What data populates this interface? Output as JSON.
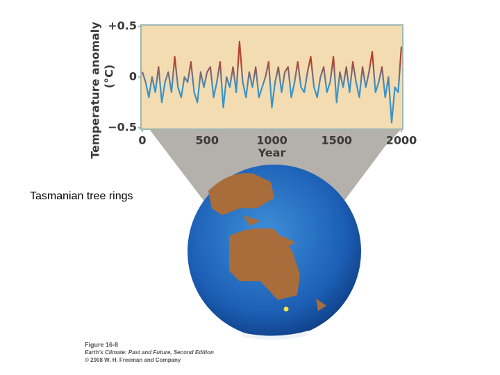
{
  "chart_data": {
    "type": "line",
    "ylabel_lines": [
      "Temperature anomaly",
      "(°C)"
    ],
    "xlabel": "Year",
    "x": [
      0,
      25,
      50,
      75,
      100,
      125,
      150,
      175,
      200,
      225,
      250,
      275,
      300,
      325,
      350,
      375,
      400,
      425,
      450,
      475,
      500,
      525,
      550,
      575,
      600,
      625,
      650,
      675,
      700,
      725,
      750,
      775,
      800,
      825,
      850,
      875,
      900,
      925,
      950,
      975,
      1000,
      1025,
      1050,
      1075,
      1100,
      1125,
      1150,
      1175,
      1200,
      1225,
      1250,
      1275,
      1300,
      1325,
      1350,
      1375,
      1400,
      1425,
      1450,
      1475,
      1500,
      1525,
      1550,
      1575,
      1600,
      1625,
      1650,
      1675,
      1700,
      1725,
      1750,
      1775,
      1800,
      1825,
      1850,
      1875,
      1900,
      1925,
      1950,
      1975,
      2000
    ],
    "series": [
      {
        "color_positive": "#b5432e",
        "color_negative": "#3b93c4",
        "values": [
          0.05,
          -0.05,
          -0.2,
          0.0,
          -0.15,
          0.1,
          -0.25,
          -0.05,
          0.05,
          -0.15,
          0.2,
          -0.1,
          -0.2,
          0.0,
          -0.05,
          0.15,
          -0.15,
          -0.25,
          0.05,
          -0.1,
          0.05,
          0.1,
          -0.2,
          -0.05,
          0.15,
          -0.3,
          0.0,
          -0.1,
          0.1,
          -0.15,
          0.35,
          -0.05,
          -0.2,
          0.05,
          -0.1,
          0.1,
          -0.2,
          -0.1,
          0.0,
          0.15,
          -0.3,
          -0.05,
          0.1,
          -0.15,
          0.05,
          0.1,
          -0.2,
          -0.05,
          0.15,
          -0.1,
          -0.15,
          0.05,
          0.2,
          -0.1,
          -0.2,
          0.0,
          0.1,
          -0.15,
          -0.05,
          0.2,
          -0.25,
          0.05,
          -0.1,
          0.1,
          -0.15,
          0.15,
          -0.05,
          -0.2,
          0.1,
          -0.1,
          0.05,
          0.25,
          -0.15,
          -0.05,
          0.1,
          -0.2,
          0.0,
          -0.45,
          -0.1,
          -0.15,
          0.3
        ]
      }
    ],
    "xlim": [
      0,
      2000
    ],
    "xticks": [
      0,
      500,
      1000,
      1500,
      2000
    ],
    "ylim": [
      -0.5,
      0.5
    ],
    "yticks": [
      {
        "value": 0.5,
        "label": "+0.5"
      },
      0,
      {
        "value": -0.5,
        "label": "−0.5"
      }
    ],
    "background": "#f3dcb2"
  },
  "location_label": "Tasmanian tree rings",
  "credits": [
    "Figure 16-8",
    "Earth's Climate: Past and Future, Second Edition",
    "© 2008 W. H. Freeman and Company"
  ]
}
